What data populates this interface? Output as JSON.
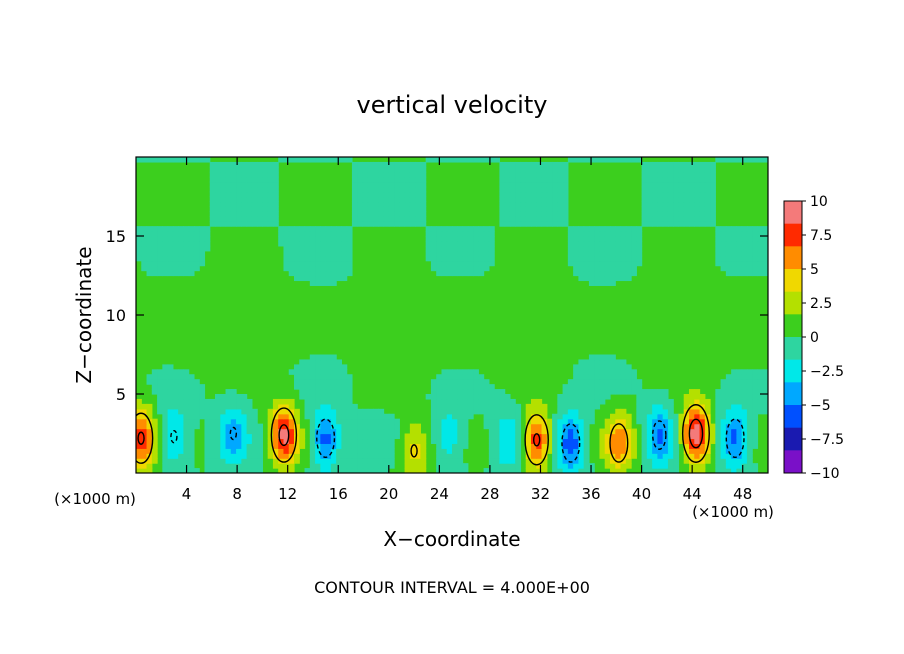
{
  "chart_data": {
    "type": "heatmap",
    "title": "vertical velocity",
    "xlabel": "X−coordinate",
    "ylabel": "Z−coordinate",
    "x_unit": "(×1000 m)",
    "xlim": [
      0,
      50
    ],
    "ylim": [
      0,
      20
    ],
    "x_ticks": [
      "4",
      "8",
      "12",
      "16",
      "20",
      "24",
      "28",
      "32",
      "36",
      "40",
      "44",
      "48"
    ],
    "x_tick_values": [
      4,
      8,
      12,
      16,
      20,
      24,
      28,
      32,
      36,
      40,
      44,
      48
    ],
    "y_ticks": [
      "5",
      "10",
      "15"
    ],
    "y_tick_values": [
      5,
      10,
      15
    ],
    "contour_interval_text": "CONTOUR INTERVAL = 4.000E+00",
    "contour_interval": 4,
    "colorbar": {
      "labels": [
        "10",
        "7.5",
        "5",
        "2.5",
        "0",
        "−2.5",
        "−5",
        "−7.5",
        "−10"
      ],
      "values": [
        10,
        7.5,
        5,
        2.5,
        0,
        -2.5,
        -5,
        -7.5,
        -10
      ],
      "colors": [
        "#f47a7a",
        "#ff2a00",
        "#ff8c00",
        "#f0d800",
        "#b4e000",
        "#3ccf1e",
        "#2ed5a0",
        "#00e8e8",
        "#00a8ff",
        "#0050ff",
        "#1a1ab0",
        "#7a10c8"
      ]
    },
    "features": [
      {
        "x": 0.4,
        "z": 2.2,
        "w": 8
      },
      {
        "x": 3.0,
        "z": 2.3,
        "w": -4
      },
      {
        "x": 7.7,
        "z": 2.5,
        "w": -4
      },
      {
        "x": 11.7,
        "z": 2.4,
        "w": 9
      },
      {
        "x": 15.0,
        "z": 2.2,
        "w": -6
      },
      {
        "x": 22.0,
        "z": 1.4,
        "w": 4
      },
      {
        "x": 24.8,
        "z": 2.3,
        "w": -3
      },
      {
        "x": 29.4,
        "z": 2.1,
        "w": -3
      },
      {
        "x": 31.7,
        "z": 2.1,
        "w": 8
      },
      {
        "x": 34.4,
        "z": 1.9,
        "w": -6
      },
      {
        "x": 38.2,
        "z": 1.9,
        "w": 6
      },
      {
        "x": 41.4,
        "z": 2.4,
        "w": -5
      },
      {
        "x": 44.3,
        "z": 2.5,
        "w": 10
      },
      {
        "x": 47.4,
        "z": 2.2,
        "w": -6
      }
    ]
  }
}
